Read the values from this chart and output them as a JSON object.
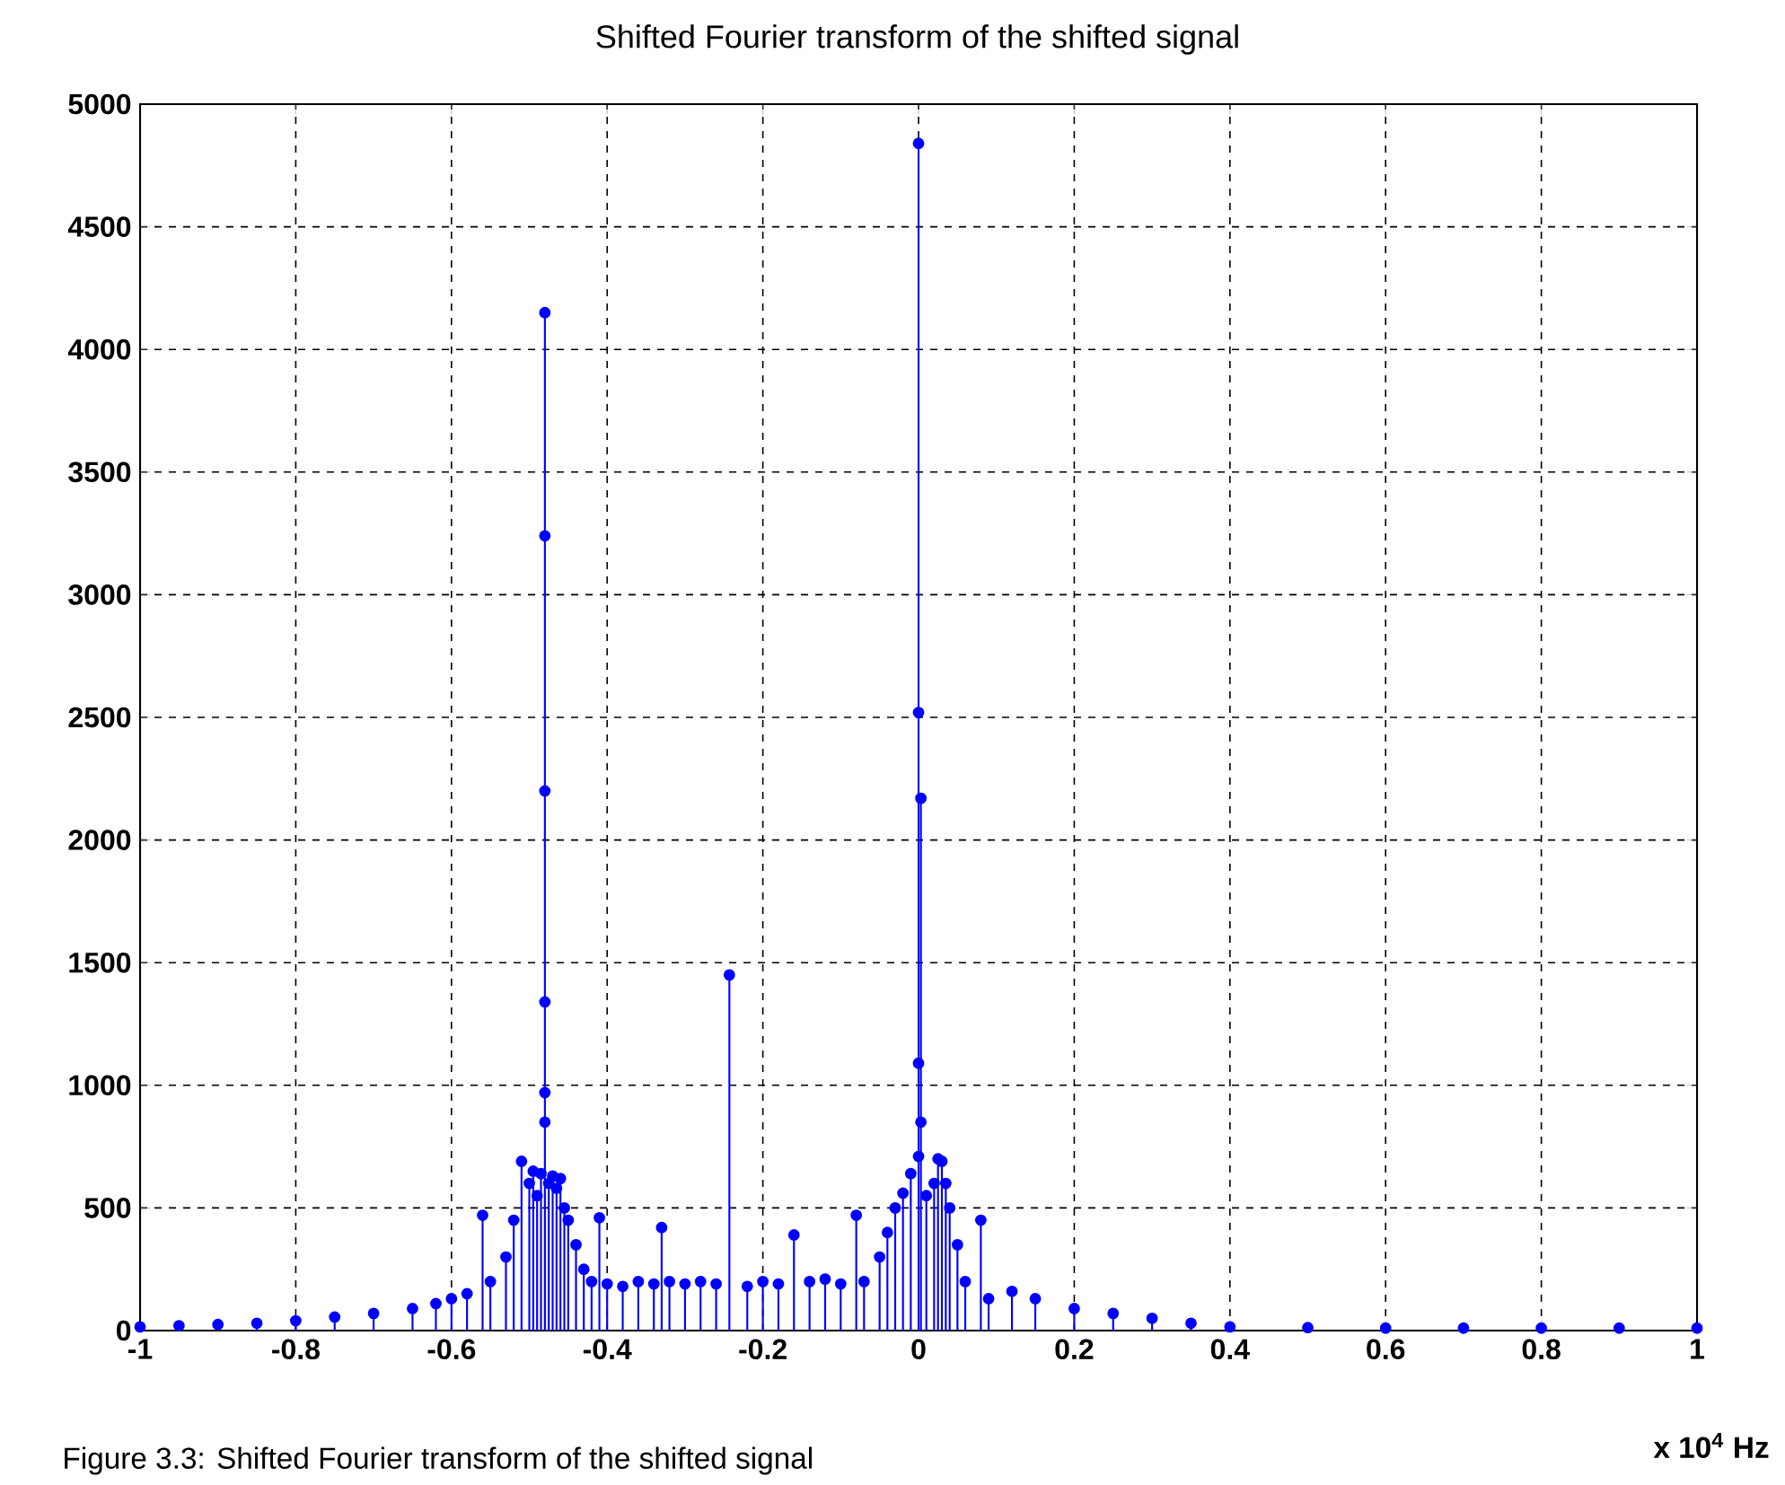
{
  "chart_data": {
    "type": "lollipop",
    "title": "Shifted Fourier transform of the shifted signal",
    "xlabel": "x 10$^{4}$ Hz",
    "annotations": [
      "Figure 3.3: Shifted Fourier transform of the shifted signal"
    ],
    "x": [
      -1.0,
      -0.95,
      -0.9,
      -0.85,
      -0.8,
      -0.75,
      -0.7,
      -0.65,
      -0.62,
      -0.6,
      -0.58,
      -0.56,
      -0.55,
      -0.53,
      -0.52,
      -0.51,
      -0.5,
      -0.495,
      -0.49,
      -0.485,
      -0.48,
      -0.48,
      -0.48,
      -0.48,
      -0.48,
      -0.48,
      -0.475,
      -0.47,
      -0.465,
      -0.46,
      -0.455,
      -0.45,
      -0.44,
      -0.43,
      -0.42,
      -0.41,
      -0.4,
      -0.38,
      -0.36,
      -0.34,
      -0.33,
      -0.32,
      -0.3,
      -0.28,
      -0.26,
      -0.243,
      -0.22,
      -0.2,
      -0.18,
      -0.16,
      -0.14,
      -0.12,
      -0.1,
      -0.08,
      -0.07,
      -0.05,
      -0.04,
      -0.03,
      -0.02,
      -0.01,
      0,
      0,
      0.003,
      0,
      0.003,
      0,
      0.01,
      0.02,
      0.025,
      0.03,
      0.035,
      0.04,
      0.05,
      0.06,
      0.08,
      0.09,
      0.12,
      0.15,
      0.2,
      0.25,
      0.3,
      0.35,
      0.4,
      0.5,
      0.6,
      0.7,
      0.8,
      0.9,
      1.0
    ],
    "values": [
      15,
      20,
      25,
      30,
      40,
      55,
      70,
      90,
      110,
      130,
      150,
      470,
      200,
      300,
      450,
      690,
      600,
      650,
      550,
      640,
      4150,
      3240,
      2200,
      1340,
      970,
      850,
      600,
      630,
      580,
      620,
      500,
      450,
      350,
      250,
      200,
      460,
      190,
      180,
      200,
      190,
      420,
      200,
      190,
      200,
      190,
      1450,
      180,
      200,
      190,
      390,
      200,
      210,
      190,
      470,
      200,
      300,
      400,
      500,
      560,
      640,
      4840,
      2520,
      2170,
      1090,
      850,
      710,
      550,
      600,
      700,
      690,
      600,
      500,
      350,
      200,
      450,
      130,
      160,
      130,
      90,
      70,
      50,
      30,
      15,
      12,
      10,
      10,
      10,
      10,
      10
    ],
    "color": "#0000ff",
    "marker": "circle",
    "grid": true,
    "xlim": [
      -1,
      1
    ],
    "ylim": [
      0,
      5000
    ],
    "xticks": [
      -1,
      -0.8,
      -0.6,
      -0.4,
      -0.2,
      0,
      0.2,
      0.4,
      0.6,
      0.8,
      1
    ],
    "yticks": [
      0,
      500,
      1000,
      1500,
      2000,
      2500,
      3000,
      3500,
      4000,
      4500,
      5000
    ]
  }
}
